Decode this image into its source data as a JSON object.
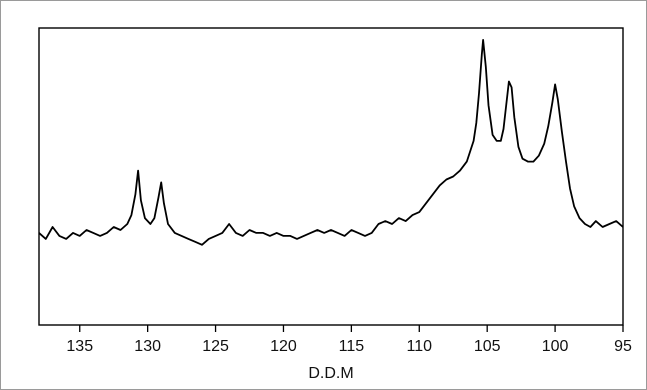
{
  "chart_data": {
    "type": "line",
    "title": "",
    "xlabel": "D.D.M",
    "ylabel": "",
    "xlim": [
      138,
      95
    ],
    "ylim": [
      0,
      1
    ],
    "x_reversed": true,
    "grid": false,
    "legend": "none",
    "x_ticks": [
      135,
      130,
      125,
      120,
      115,
      110,
      105,
      100,
      95
    ],
    "series": [
      {
        "name": "",
        "color": "#000000",
        "points": [
          [
            138.0,
            0.31
          ],
          [
            137.5,
            0.29
          ],
          [
            137.0,
            0.33
          ],
          [
            136.5,
            0.3
          ],
          [
            136.0,
            0.29
          ],
          [
            135.5,
            0.31
          ],
          [
            135.0,
            0.3
          ],
          [
            134.5,
            0.32
          ],
          [
            134.0,
            0.31
          ],
          [
            133.5,
            0.3
          ],
          [
            133.0,
            0.31
          ],
          [
            132.5,
            0.33
          ],
          [
            132.0,
            0.32
          ],
          [
            131.5,
            0.34
          ],
          [
            131.2,
            0.37
          ],
          [
            130.9,
            0.44
          ],
          [
            130.7,
            0.52
          ],
          [
            130.5,
            0.42
          ],
          [
            130.2,
            0.36
          ],
          [
            129.8,
            0.34
          ],
          [
            129.5,
            0.36
          ],
          [
            129.2,
            0.43
          ],
          [
            129.0,
            0.48
          ],
          [
            128.8,
            0.41
          ],
          [
            128.5,
            0.34
          ],
          [
            128.0,
            0.31
          ],
          [
            127.5,
            0.3
          ],
          [
            127.0,
            0.29
          ],
          [
            126.5,
            0.28
          ],
          [
            126.0,
            0.27
          ],
          [
            125.5,
            0.29
          ],
          [
            125.0,
            0.3
          ],
          [
            124.5,
            0.31
          ],
          [
            124.0,
            0.34
          ],
          [
            123.5,
            0.31
          ],
          [
            123.0,
            0.3
          ],
          [
            122.5,
            0.32
          ],
          [
            122.0,
            0.31
          ],
          [
            121.5,
            0.31
          ],
          [
            121.0,
            0.3
          ],
          [
            120.5,
            0.31
          ],
          [
            120.0,
            0.3
          ],
          [
            119.5,
            0.3
          ],
          [
            119.0,
            0.29
          ],
          [
            118.5,
            0.3
          ],
          [
            118.0,
            0.31
          ],
          [
            117.5,
            0.32
          ],
          [
            117.0,
            0.31
          ],
          [
            116.5,
            0.32
          ],
          [
            116.0,
            0.31
          ],
          [
            115.5,
            0.3
          ],
          [
            115.0,
            0.32
          ],
          [
            114.5,
            0.31
          ],
          [
            114.0,
            0.3
          ],
          [
            113.5,
            0.31
          ],
          [
            113.0,
            0.34
          ],
          [
            112.5,
            0.35
          ],
          [
            112.0,
            0.34
          ],
          [
            111.5,
            0.36
          ],
          [
            111.0,
            0.35
          ],
          [
            110.5,
            0.37
          ],
          [
            110.0,
            0.38
          ],
          [
            109.5,
            0.41
          ],
          [
            109.0,
            0.44
          ],
          [
            108.5,
            0.47
          ],
          [
            108.0,
            0.49
          ],
          [
            107.5,
            0.5
          ],
          [
            107.0,
            0.52
          ],
          [
            106.5,
            0.55
          ],
          [
            106.0,
            0.62
          ],
          [
            105.8,
            0.68
          ],
          [
            105.6,
            0.78
          ],
          [
            105.4,
            0.91
          ],
          [
            105.3,
            0.96
          ],
          [
            105.1,
            0.87
          ],
          [
            104.9,
            0.74
          ],
          [
            104.6,
            0.64
          ],
          [
            104.3,
            0.62
          ],
          [
            104.0,
            0.62
          ],
          [
            103.8,
            0.66
          ],
          [
            103.6,
            0.74
          ],
          [
            103.4,
            0.82
          ],
          [
            103.2,
            0.8
          ],
          [
            103.0,
            0.7
          ],
          [
            102.7,
            0.6
          ],
          [
            102.4,
            0.56
          ],
          [
            102.0,
            0.55
          ],
          [
            101.6,
            0.55
          ],
          [
            101.2,
            0.57
          ],
          [
            100.8,
            0.61
          ],
          [
            100.5,
            0.67
          ],
          [
            100.2,
            0.75
          ],
          [
            100.0,
            0.81
          ],
          [
            99.8,
            0.76
          ],
          [
            99.5,
            0.65
          ],
          [
            99.2,
            0.55
          ],
          [
            98.9,
            0.46
          ],
          [
            98.6,
            0.4
          ],
          [
            98.2,
            0.36
          ],
          [
            97.8,
            0.34
          ],
          [
            97.4,
            0.33
          ],
          [
            97.0,
            0.35
          ],
          [
            96.5,
            0.33
          ],
          [
            96.0,
            0.34
          ],
          [
            95.5,
            0.35
          ],
          [
            95.0,
            0.33
          ]
        ]
      }
    ]
  }
}
